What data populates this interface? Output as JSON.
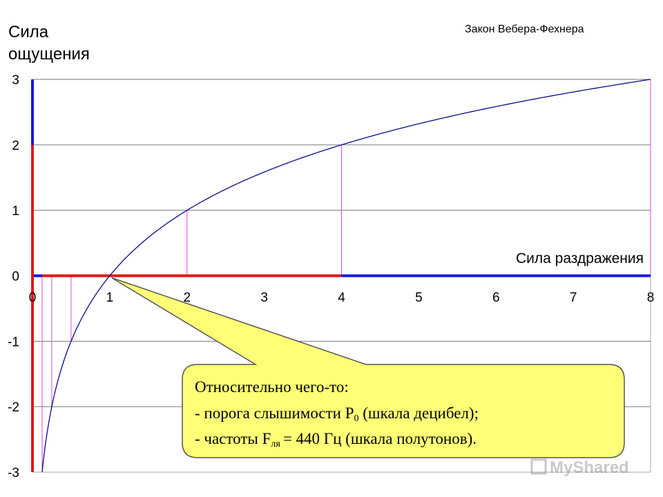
{
  "chart_data": {
    "type": "line",
    "title": "Закон Вебера-Фехнера",
    "ylabel_lines": [
      "Сила",
      "ощущения"
    ],
    "xlabel": "Сила раздражения",
    "function": "log2",
    "xlim": [
      0,
      8
    ],
    "ylim": [
      -3,
      3
    ],
    "x_ticks": [
      "0",
      "1",
      "2",
      "3",
      "4",
      "5",
      "6",
      "7",
      "8"
    ],
    "y_ticks": [
      "3",
      "2",
      "1",
      "0",
      "-1",
      "-2",
      "-3"
    ],
    "grid": "horizontal",
    "curve_color": "#0a0a8c",
    "marker_points": [
      {
        "x": 0.125,
        "y": -3
      },
      {
        "x": 0.25,
        "y": -2
      },
      {
        "x": 0.5,
        "y": -1
      },
      {
        "x": 1,
        "y": 0
      },
      {
        "x": 2,
        "y": 1
      },
      {
        "x": 4,
        "y": 2
      },
      {
        "x": 8,
        "y": 3
      }
    ],
    "marker_color": "#e040e0",
    "axis_colors": {
      "blue": "#1515e6",
      "red": "#e61515"
    },
    "red_segments_x": [
      [
        0.125,
        1
      ],
      [
        1,
        4
      ]
    ],
    "red_segments_y": [
      [
        -3,
        0
      ],
      [
        0,
        2
      ]
    ],
    "callout": {
      "lines": [
        "Относительно чего-то:",
        "- порога слышимости P",
        "- частоты F",
        "= 440 Гц (шкала полутонов)."
      ],
      "line2_subscript": "0",
      "line2_suffix": " (шкала децибел);",
      "line3_subscript": "ля",
      "fill": "#ffff77",
      "anchor": {
        "x": 1,
        "y": 0
      }
    },
    "watermark": "MyShared"
  }
}
